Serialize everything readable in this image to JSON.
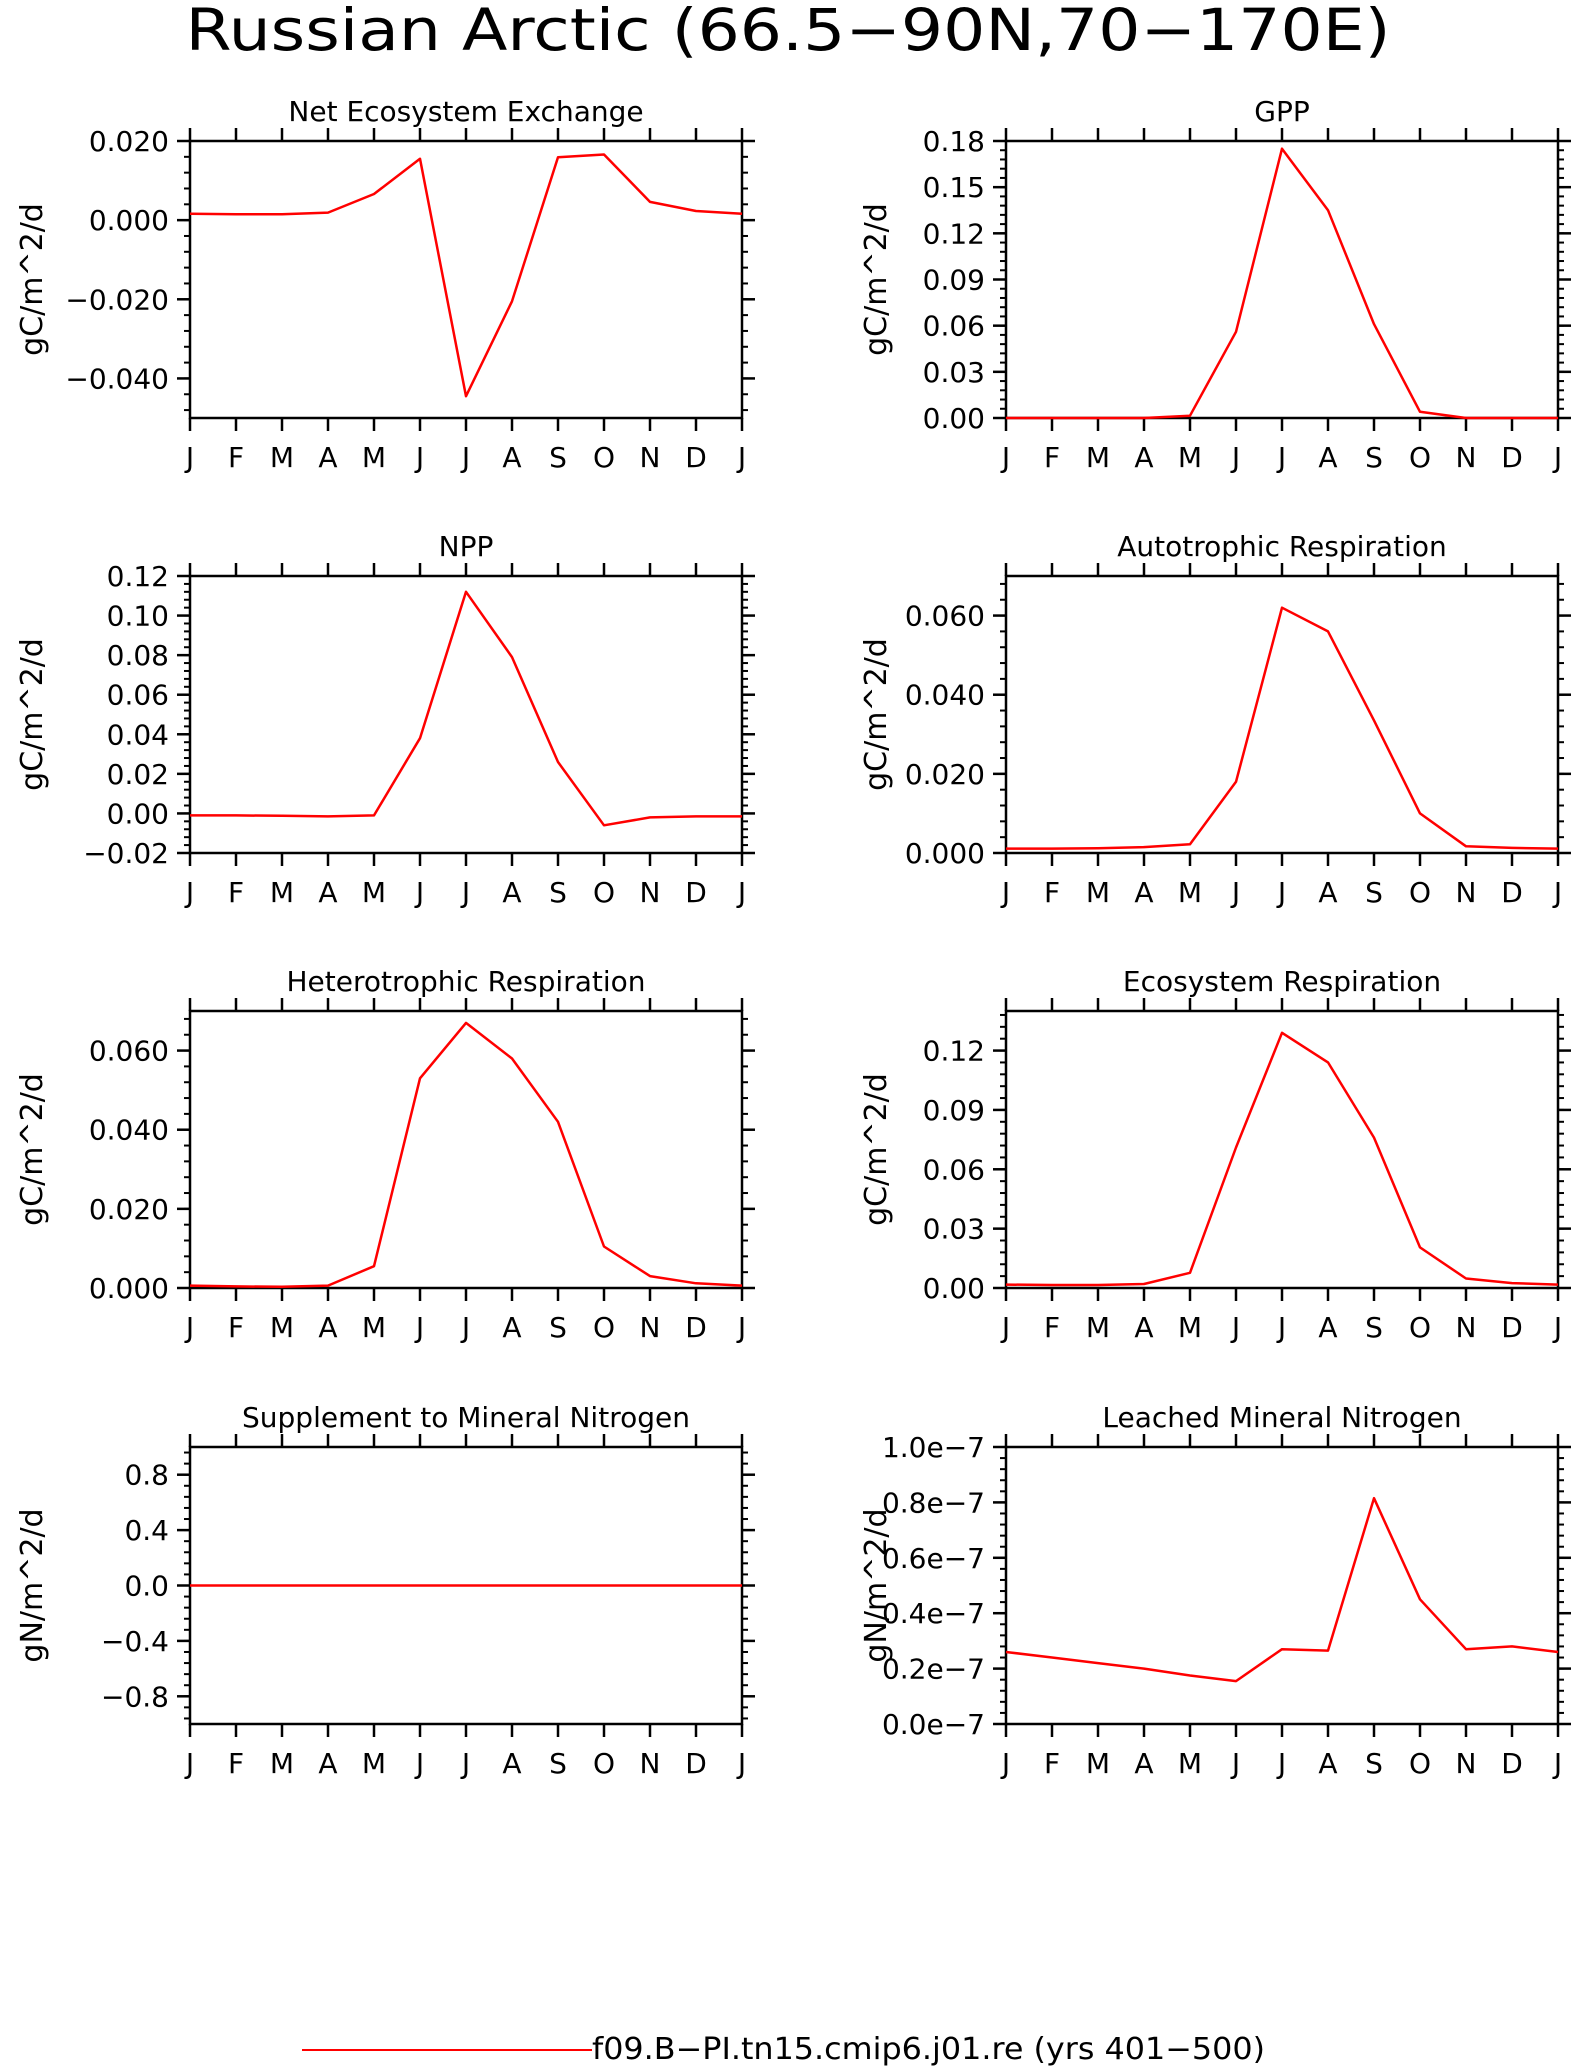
{
  "title": "Russian Arctic (66.5−90N,70−170E)",
  "legend": {
    "label": "f09.B−PI.tn15.cmip6.j01.re (yrs 401−500)",
    "color": "#ff0000"
  },
  "chart_data": [
    {
      "type": "line",
      "title": "Net Ecosystem Exchange",
      "ylabel": "gC/m^2/d",
      "categories": [
        "J",
        "F",
        "M",
        "A",
        "M",
        "J",
        "J",
        "A",
        "S",
        "O",
        "N",
        "D",
        "J"
      ],
      "ylim": [
        -0.05,
        0.02
      ],
      "yticks": [
        0.02,
        0.0,
        -0.02,
        -0.04
      ],
      "yticklabels": [
        "0.020",
        "0.000",
        "−0.020",
        "−0.040"
      ],
      "series": [
        {
          "values": [
            0.0016,
            0.0015,
            0.0015,
            0.0019,
            0.0066,
            0.0155,
            -0.0445,
            -0.0205,
            0.0159,
            0.0166,
            0.0046,
            0.0023,
            0.0016
          ]
        }
      ]
    },
    {
      "type": "line",
      "title": "GPP",
      "ylabel": "gC/m^2/d",
      "categories": [
        "J",
        "F",
        "M",
        "A",
        "M",
        "J",
        "J",
        "A",
        "S",
        "O",
        "N",
        "D",
        "J"
      ],
      "ylim": [
        0,
        0.18
      ],
      "yticks": [
        0.18,
        0.15,
        0.12,
        0.09,
        0.06,
        0.03,
        0.0
      ],
      "yticklabels": [
        "0.18",
        "0.15",
        "0.12",
        "0.09",
        "0.06",
        "0.03",
        "0.00"
      ],
      "series": [
        {
          "values": [
            0.0,
            0.0,
            0.0,
            0.0,
            0.0015,
            0.056,
            0.175,
            0.135,
            0.061,
            0.004,
            0.0,
            0.0,
            0.0
          ]
        }
      ]
    },
    {
      "type": "line",
      "title": "NPP",
      "ylabel": "gC/m^2/d",
      "categories": [
        "J",
        "F",
        "M",
        "A",
        "M",
        "J",
        "J",
        "A",
        "S",
        "O",
        "N",
        "D",
        "J"
      ],
      "ylim": [
        -0.02,
        0.12
      ],
      "yticks": [
        0.12,
        0.1,
        0.08,
        0.06,
        0.04,
        0.02,
        0.0,
        -0.02
      ],
      "yticklabels": [
        "0.12",
        "0.10",
        "0.08",
        "0.06",
        "0.04",
        "0.02",
        "0.00",
        "−0.02"
      ],
      "series": [
        {
          "values": [
            -0.001,
            -0.001,
            -0.0012,
            -0.0015,
            -0.001,
            0.038,
            0.112,
            0.079,
            0.026,
            -0.006,
            -0.002,
            -0.0015,
            -0.0015
          ]
        }
      ]
    },
    {
      "type": "line",
      "title": "Autotrophic Respiration",
      "ylabel": "gC/m^2/d",
      "categories": [
        "J",
        "F",
        "M",
        "A",
        "M",
        "J",
        "J",
        "A",
        "S",
        "O",
        "N",
        "D",
        "J"
      ],
      "ylim": [
        0,
        0.07
      ],
      "yticks": [
        0.06,
        0.04,
        0.02,
        0.0
      ],
      "yticklabels": [
        "0.060",
        "0.040",
        "0.020",
        "0.000"
      ],
      "series": [
        {
          "values": [
            0.0011,
            0.0011,
            0.0012,
            0.0015,
            0.0022,
            0.018,
            0.062,
            0.056,
            0.0335,
            0.01,
            0.0017,
            0.0013,
            0.0011
          ]
        }
      ]
    },
    {
      "type": "line",
      "title": "Heterotrophic Respiration",
      "ylabel": "gC/m^2/d",
      "categories": [
        "J",
        "F",
        "M",
        "A",
        "M",
        "J",
        "J",
        "A",
        "S",
        "O",
        "N",
        "D",
        "J"
      ],
      "ylim": [
        0,
        0.07
      ],
      "yticks": [
        0.06,
        0.04,
        0.02,
        0.0
      ],
      "yticklabels": [
        "0.060",
        "0.040",
        "0.020",
        "0.000"
      ],
      "series": [
        {
          "values": [
            0.0006,
            0.0004,
            0.0003,
            0.0006,
            0.0055,
            0.053,
            0.067,
            0.058,
            0.042,
            0.0105,
            0.003,
            0.0012,
            0.0006
          ]
        }
      ]
    },
    {
      "type": "line",
      "title": "Ecosystem Respiration",
      "ylabel": "gC/m^2/d",
      "categories": [
        "J",
        "F",
        "M",
        "A",
        "M",
        "J",
        "J",
        "A",
        "S",
        "O",
        "N",
        "D",
        "J"
      ],
      "ylim": [
        0,
        0.14
      ],
      "yticks": [
        0.12,
        0.09,
        0.06,
        0.03,
        0.0
      ],
      "yticklabels": [
        "0.12",
        "0.09",
        "0.06",
        "0.03",
        "0.00"
      ],
      "series": [
        {
          "values": [
            0.0017,
            0.0015,
            0.0015,
            0.002,
            0.0077,
            0.071,
            0.129,
            0.114,
            0.076,
            0.0205,
            0.0048,
            0.0025,
            0.0017
          ]
        }
      ]
    },
    {
      "type": "line",
      "title": "Supplement to Mineral Nitrogen",
      "ylabel": "gN/m^2/d",
      "categories": [
        "J",
        "F",
        "M",
        "A",
        "M",
        "J",
        "J",
        "A",
        "S",
        "O",
        "N",
        "D",
        "J"
      ],
      "ylim": [
        -1.0,
        1.0
      ],
      "yticks": [
        0.8,
        0.4,
        0.0,
        -0.4,
        -0.8
      ],
      "yticklabels": [
        "0.8",
        "0.4",
        "0.0",
        "−0.4",
        "−0.8"
      ],
      "series": [
        {
          "values": [
            0,
            0,
            0,
            0,
            0,
            0,
            0,
            0,
            0,
            0,
            0,
            0,
            0
          ]
        }
      ]
    },
    {
      "type": "line",
      "title": "Leached Mineral Nitrogen",
      "ylabel": "gN/m^2/d",
      "categories": [
        "J",
        "F",
        "M",
        "A",
        "M",
        "J",
        "J",
        "A",
        "S",
        "O",
        "N",
        "D",
        "J"
      ],
      "ylim": [
        0,
        1e-07
      ],
      "yticks": [
        1e-07,
        8e-08,
        6e-08,
        4e-08,
        2e-08,
        0.0
      ],
      "yticklabels": [
        "1.0e−7",
        "0.8e−7",
        "0.6e−7",
        "0.4e−7",
        "0.2e−7",
        "0.0e−7"
      ],
      "series": [
        {
          "values": [
            2.6e-08,
            2.4e-08,
            2.2e-08,
            2e-08,
            1.75e-08,
            1.55e-08,
            2.7e-08,
            2.65e-08,
            8.15e-08,
            4.5e-08,
            2.7e-08,
            2.8e-08,
            2.6e-08
          ]
        }
      ]
    }
  ]
}
